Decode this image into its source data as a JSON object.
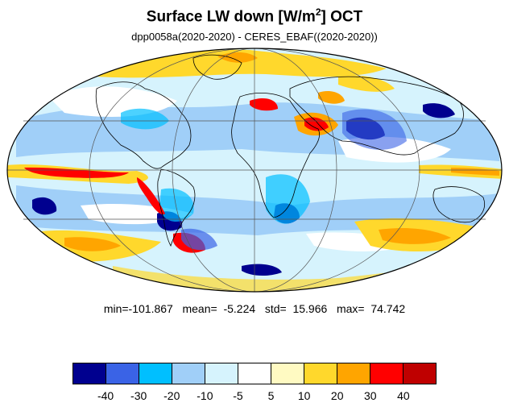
{
  "title": {
    "main": "Surface LW down [W/m",
    "sup": "2",
    "suffix": "]  OCT"
  },
  "subtitle": "dpp0058a(2020-2020) - CERES_EBAF((2020-2020))",
  "stats": {
    "text": "min=-101.867   mean=  -5.224   std=  15.966   max=  74.742",
    "min": -101.867,
    "mean": -5.224,
    "std": 15.966,
    "max": 74.742
  },
  "colorbar": {
    "colors": [
      "#00008f",
      "#3a63e6",
      "#00bfff",
      "#a0cff8",
      "#d6f3fd",
      "#ffffff",
      "#fffac2",
      "#ffd82c",
      "#ffa500",
      "#ff0000",
      "#bf0000"
    ],
    "labels": [
      "-40",
      "-30",
      "-20",
      "-10",
      "-5",
      "5",
      "10",
      "20",
      "30",
      "40"
    ]
  },
  "projection": "mollweide",
  "graticule": {
    "lon_step_deg": 60,
    "lat_step_deg": 30
  }
}
